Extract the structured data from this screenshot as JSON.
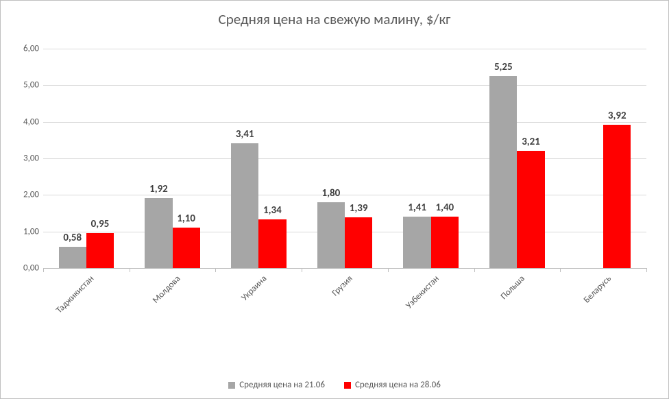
{
  "chart": {
    "type": "bar",
    "title": "Средняя цена на свежую малину, $/кг",
    "title_fontsize": 21,
    "title_color": "#595959",
    "background_color": "#ffffff",
    "border_color": "#bfbfbf",
    "grid_color": "#d9d9d9",
    "y_axis": {
      "min": 0,
      "max": 6,
      "step": 1,
      "ticks": [
        "0,00",
        "1,00",
        "2,00",
        "3,00",
        "4,00",
        "5,00",
        "6,00"
      ],
      "label_fontsize": 13,
      "label_color": "#595959"
    },
    "categories": [
      "Таджикистан",
      "Молдова",
      "Украина",
      "Грузия",
      "Узбекистан",
      "Польша",
      "Беларусь"
    ],
    "x_label_fontsize": 13,
    "x_label_rotation_deg": -45,
    "series": [
      {
        "name": "Средняя цена на 21.06",
        "color": "#a6a6a6",
        "values": [
          0.58,
          1.92,
          3.41,
          1.8,
          1.41,
          5.25,
          null
        ],
        "labels": [
          "0,58",
          "1,92",
          "3,41",
          "1,80",
          "1,41",
          "5,25",
          ""
        ]
      },
      {
        "name": "Средняя цена на 28.06",
        "color": "#ff0000",
        "values": [
          0.95,
          1.1,
          1.34,
          1.39,
          1.4,
          3.21,
          3.92
        ],
        "labels": [
          "0,95",
          "1,10",
          "1,34",
          "1,39",
          "1,40",
          "3,21",
          "3,92"
        ]
      }
    ],
    "data_label_fontsize": 15,
    "data_label_weight": "bold",
    "data_label_color": "#404040",
    "bar_gap_ratio": 0.06,
    "group_inner_gap": 0.0,
    "legend": {
      "position": "bottom",
      "fontsize": 13,
      "color": "#595959",
      "swatch_size": 10
    }
  }
}
